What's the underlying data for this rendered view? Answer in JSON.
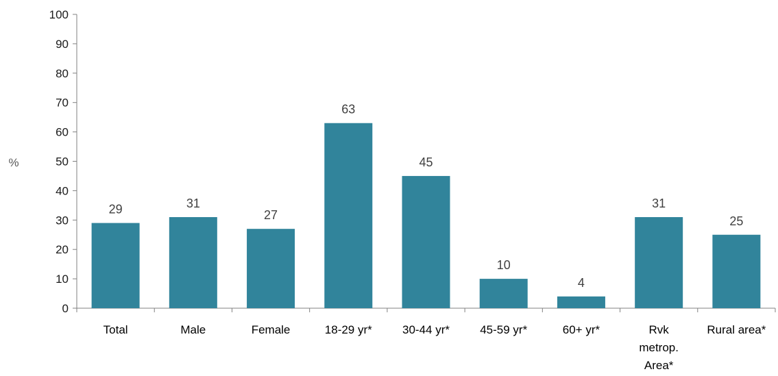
{
  "chart_data": {
    "type": "bar",
    "ylabel": "%",
    "ylim": [
      0,
      100
    ],
    "yticks": [
      0,
      10,
      20,
      30,
      40,
      50,
      60,
      70,
      80,
      90,
      100
    ],
    "categories": [
      [
        "Total"
      ],
      [
        "Male"
      ],
      [
        "Female"
      ],
      [
        "18-29 yr*"
      ],
      [
        "30-44 yr*"
      ],
      [
        "45-59 yr*"
      ],
      [
        "60+ yr*"
      ],
      [
        "Rvk",
        "metrop.",
        "Area*"
      ],
      [
        "Rural area*"
      ]
    ],
    "values": [
      29,
      31,
      27,
      63,
      45,
      10,
      4,
      31,
      25
    ],
    "data_labels": true,
    "grid": false,
    "legend": "none",
    "colors": {
      "bar": "#31849B",
      "axis": "#808080"
    }
  }
}
